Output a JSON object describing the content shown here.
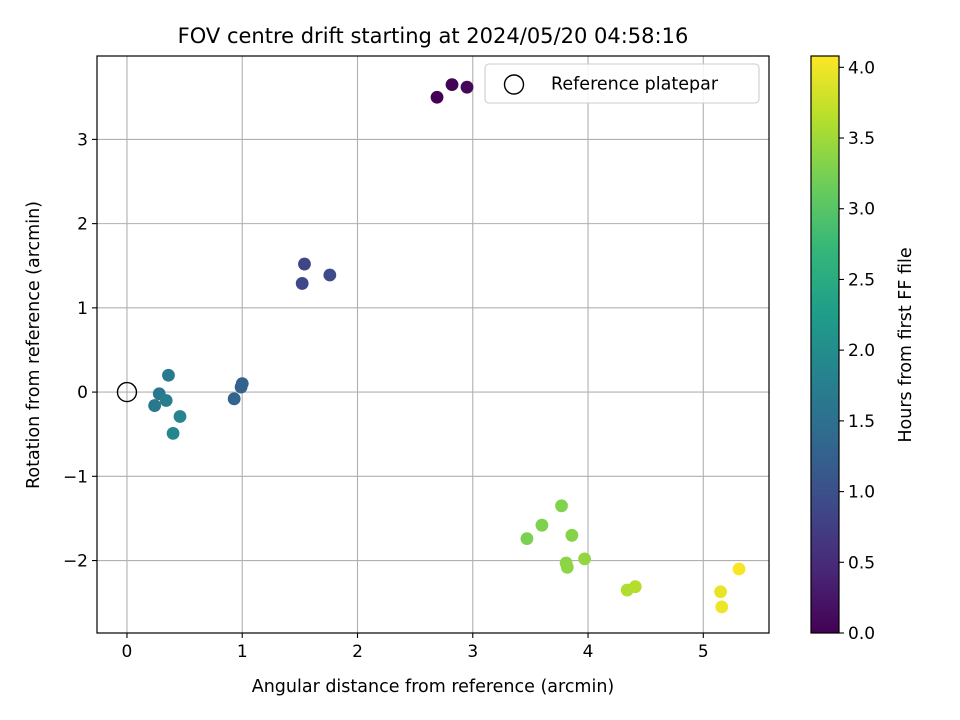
{
  "chart_data": {
    "type": "scatter",
    "title": "FOV centre drift starting at 2024/05/20 04:58:16",
    "xlabel": "Angular distance from reference (arcmin)",
    "ylabel": "Rotation from reference (arcmin)",
    "xlim": [
      -0.26,
      5.57
    ],
    "ylim": [
      -2.86,
      3.99
    ],
    "xticks": [
      0,
      1,
      2,
      3,
      4,
      5
    ],
    "yticks": [
      -2,
      -1,
      0,
      1,
      2,
      3
    ],
    "xtick_labels": [
      "0",
      "1",
      "2",
      "3",
      "4",
      "5"
    ],
    "ytick_labels": [
      "−2",
      "−1",
      "0",
      "1",
      "2",
      "3"
    ],
    "grid": true,
    "legend": {
      "placement": "top-right",
      "entries": [
        "Reference platepar"
      ]
    },
    "reference_point": {
      "x": 0,
      "y": 0,
      "label": "Reference platepar"
    },
    "colorbar": {
      "label": "Hours from first FF file",
      "range": [
        0.0,
        4.08
      ],
      "ticks": [
        0.0,
        0.5,
        1.0,
        1.5,
        2.0,
        2.5,
        3.0,
        3.5,
        4.0
      ],
      "tick_labels": [
        "0.0",
        "0.5",
        "1.0",
        "1.5",
        "2.0",
        "2.5",
        "3.0",
        "3.5",
        "4.0"
      ],
      "colormap": "viridis"
    },
    "points": [
      {
        "x": 2.69,
        "y": 3.5,
        "hours": 0.0
      },
      {
        "x": 2.82,
        "y": 3.65,
        "hours": 0.03
      },
      {
        "x": 2.95,
        "y": 3.62,
        "hours": 0.07
      },
      {
        "x": 1.54,
        "y": 1.52,
        "hours": 0.85
      },
      {
        "x": 1.52,
        "y": 1.29,
        "hours": 0.88
      },
      {
        "x": 1.76,
        "y": 1.39,
        "hours": 0.9
      },
      {
        "x": 1.0,
        "y": 0.1,
        "hours": 1.25
      },
      {
        "x": 0.99,
        "y": 0.06,
        "hours": 1.28
      },
      {
        "x": 0.93,
        "y": -0.08,
        "hours": 1.3
      },
      {
        "x": 0.28,
        "y": -0.02,
        "hours": 1.62
      },
      {
        "x": 0.24,
        "y": -0.16,
        "hours": 1.62
      },
      {
        "x": 0.36,
        "y": 0.2,
        "hours": 1.68
      },
      {
        "x": 0.34,
        "y": -0.1,
        "hours": 1.75
      },
      {
        "x": 0.46,
        "y": -0.29,
        "hours": 1.85
      },
      {
        "x": 0.4,
        "y": -0.49,
        "hours": 1.9
      },
      {
        "x": 3.47,
        "y": -1.74,
        "hours": 3.25
      },
      {
        "x": 3.6,
        "y": -1.58,
        "hours": 3.28
      },
      {
        "x": 3.77,
        "y": -1.35,
        "hours": 3.3
      },
      {
        "x": 3.86,
        "y": -1.7,
        "hours": 3.33
      },
      {
        "x": 3.81,
        "y": -2.03,
        "hours": 3.35
      },
      {
        "x": 3.82,
        "y": -2.08,
        "hours": 3.38
      },
      {
        "x": 3.97,
        "y": -1.98,
        "hours": 3.42
      },
      {
        "x": 4.34,
        "y": -2.35,
        "hours": 3.6
      },
      {
        "x": 4.41,
        "y": -2.31,
        "hours": 3.63
      },
      {
        "x": 5.15,
        "y": -2.37,
        "hours": 3.95
      },
      {
        "x": 5.16,
        "y": -2.55,
        "hours": 3.98
      },
      {
        "x": 5.31,
        "y": -2.1,
        "hours": 4.05
      }
    ]
  }
}
